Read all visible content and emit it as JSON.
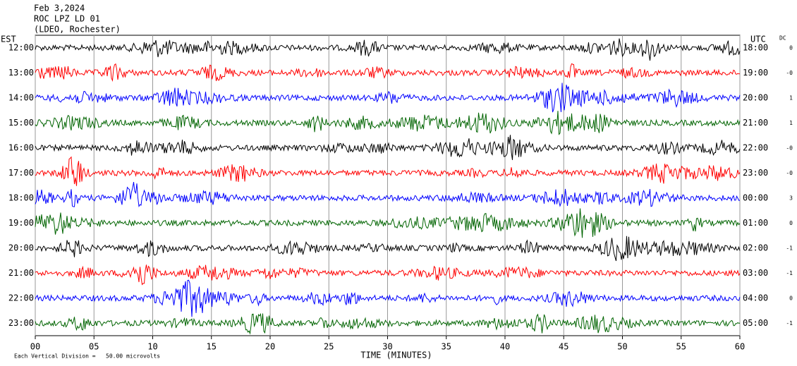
{
  "chart_data": {
    "type": "helicorder",
    "title_lines": [
      "Feb 3,2024",
      "ROC LPZ LD 01",
      "(LDEO, Rochester)"
    ],
    "left_label": "EST",
    "right_label": "UTC",
    "dc_label": "DC",
    "rows": [
      {
        "left": "12:00",
        "right": "18:00",
        "dc": "0",
        "color": "#000000"
      },
      {
        "left": "13:00",
        "right": "19:00",
        "dc": "-0",
        "color": "#ff0000"
      },
      {
        "left": "14:00",
        "right": "20:00",
        "dc": "1",
        "color": "#0000ff"
      },
      {
        "left": "15:00",
        "right": "21:00",
        "dc": "1",
        "color": "#006400"
      },
      {
        "left": "16:00",
        "right": "22:00",
        "dc": "-0",
        "color": "#000000"
      },
      {
        "left": "17:00",
        "right": "23:00",
        "dc": "-0",
        "color": "#ff0000"
      },
      {
        "left": "18:00",
        "right": "00:00",
        "dc": "3",
        "color": "#0000ff"
      },
      {
        "left": "19:00",
        "right": "01:00",
        "dc": "0",
        "color": "#006400"
      },
      {
        "left": "20:00",
        "right": "02:00",
        "dc": "-1",
        "color": "#000000"
      },
      {
        "left": "21:00",
        "right": "03:00",
        "dc": "-1",
        "color": "#ff0000"
      },
      {
        "left": "22:00",
        "right": "04:00",
        "dc": "0",
        "color": "#0000ff"
      },
      {
        "left": "23:00",
        "right": "05:00",
        "dc": "-1",
        "color": "#006400"
      }
    ],
    "xlabel": "TIME (MINUTES)",
    "xlim": [
      0,
      60
    ],
    "xticks": [
      {
        "value": 0,
        "label": "00"
      },
      {
        "value": 5,
        "label": "05"
      },
      10,
      15,
      20,
      25,
      30,
      35,
      40,
      45,
      50,
      55,
      60
    ],
    "footnote": "Each Vertical Division =   50.00 microvolts"
  }
}
